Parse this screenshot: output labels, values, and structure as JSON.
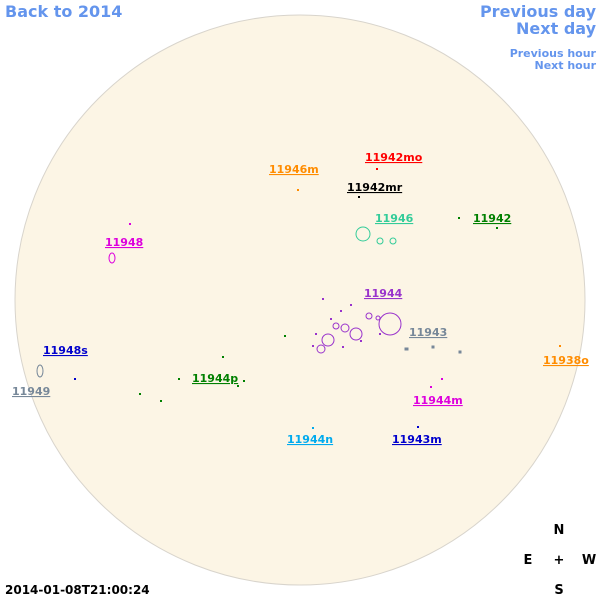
{
  "nav": {
    "back": "Back to 2014",
    "previous_day": "Previous day",
    "next_day": "Next day",
    "previous_hour": "Previous hour",
    "next_hour": "Next hour"
  },
  "regions": [
    {
      "label": "11942mo",
      "color": "#ff0000"
    },
    {
      "label": "11946m",
      "color": "#ff8c00"
    },
    {
      "label": "11942mr",
      "color": "#000000"
    },
    {
      "label": "11946",
      "color": "#33cc99"
    },
    {
      "label": "11942",
      "color": "#008000"
    },
    {
      "label": "11948",
      "color": "#dd00dd"
    },
    {
      "label": "11944",
      "color": "#9933cc"
    },
    {
      "label": "11943",
      "color": "#778899"
    },
    {
      "label": "11948s",
      "color": "#0000cc"
    },
    {
      "label": "11938o",
      "color": "#ff8c00"
    },
    {
      "label": "11949",
      "color": "#778899"
    },
    {
      "label": "11944p",
      "color": "#008000"
    },
    {
      "label": "11944m",
      "color": "#dd00dd"
    },
    {
      "label": "11944n",
      "color": "#00aaee"
    },
    {
      "label": "11943m",
      "color": "#0000cc"
    }
  ],
  "timestamp": "2014-01-08T21:00:24",
  "compass": {
    "north": "N",
    "east": "E",
    "center": "+",
    "west": "W",
    "south": "S"
  }
}
